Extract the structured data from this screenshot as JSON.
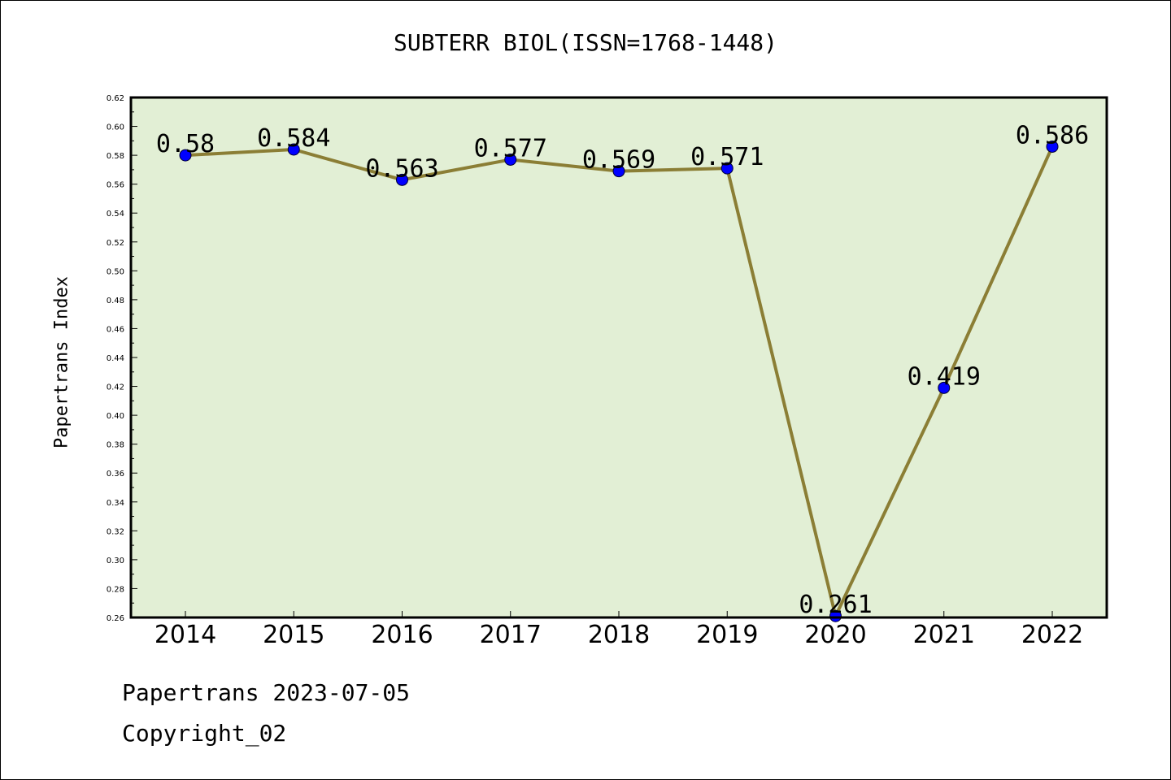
{
  "title": "SUBTERR BIOL(ISSN=1768-1448)",
  "footer": {
    "line1": "Papertrans 2023-07-05",
    "line2": "Copyright_02"
  },
  "colors": {
    "plot_background": "#e2efd5",
    "line": "#8b7e35",
    "marker": "#0000ff"
  },
  "chart_data": {
    "type": "line",
    "ylabel": "Papertrans Index",
    "x": [
      "2014",
      "2015",
      "2016",
      "2017",
      "2018",
      "2019",
      "2020",
      "2021",
      "2022"
    ],
    "values": [
      0.58,
      0.584,
      0.563,
      0.577,
      0.569,
      0.571,
      0.261,
      0.419,
      0.586
    ],
    "data_labels": [
      "0.58",
      "0.584",
      "0.563",
      "0.577",
      "0.569",
      "0.571",
      "0.261",
      "0.419",
      "0.586"
    ],
    "ylim": [
      0.26,
      0.62
    ],
    "yticks": [
      "0.26",
      "0.28",
      "0.30",
      "0.32",
      "0.34",
      "0.36",
      "0.38",
      "0.40",
      "0.42",
      "0.44",
      "0.46",
      "0.48",
      "0.50",
      "0.52",
      "0.54",
      "0.56",
      "0.58",
      "0.60",
      "0.62"
    ],
    "grid": false,
    "legend": "none"
  }
}
